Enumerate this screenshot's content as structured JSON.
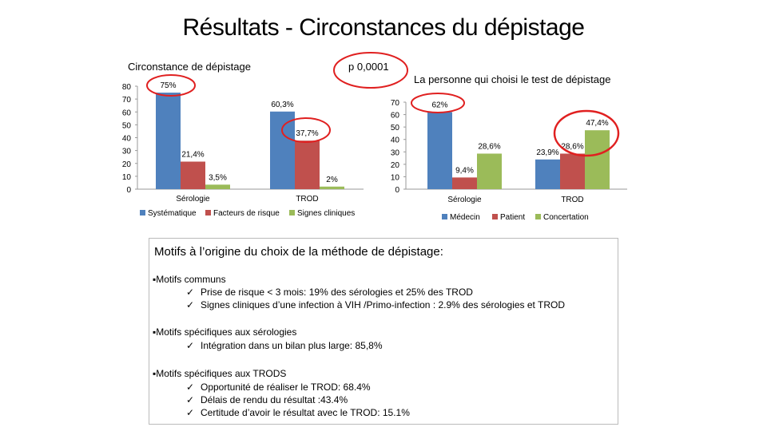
{
  "title": "Résultats - Circonstances du dépistage",
  "p_value": "p 0,0001",
  "colors": {
    "blue": "#4F81BD",
    "red": "#C0504D",
    "green": "#9BBB59",
    "highlight": "#E02020"
  },
  "chart_data": [
    {
      "type": "bar",
      "title": "Circonstance de dépistage",
      "categories": [
        "Sérologie",
        "TROD"
      ],
      "ylim": [
        0,
        80
      ],
      "yticks": [
        0,
        10,
        20,
        30,
        40,
        50,
        60,
        70,
        80
      ],
      "series": [
        {
          "name": "Systématique",
          "values": [
            75,
            60.3
          ],
          "labels": [
            "75%",
            "60,3%"
          ]
        },
        {
          "name": "Facteurs de risque",
          "values": [
            21.4,
            37.7
          ],
          "labels": [
            "21,4%",
            "37,7%"
          ]
        },
        {
          "name": "Signes cliniques",
          "values": [
            3.5,
            2
          ],
          "labels": [
            "3,5%",
            "2%"
          ]
        }
      ],
      "legend": "bottom"
    },
    {
      "type": "bar",
      "title": "La personne qui choisi le test de dépistage",
      "categories": [
        "Sérologie",
        "TROD"
      ],
      "ylim": [
        0,
        70
      ],
      "yticks": [
        0,
        10,
        20,
        30,
        40,
        50,
        60,
        70
      ],
      "series": [
        {
          "name": "Médecin",
          "values": [
            62,
            23.9
          ],
          "labels": [
            "62%",
            "23,9%"
          ]
        },
        {
          "name": "Patient",
          "values": [
            9.4,
            28.6
          ],
          "labels": [
            "9,4%",
            "28,6%"
          ]
        },
        {
          "name": "Concertation",
          "values": [
            28.6,
            47.4
          ],
          "labels": [
            "28,6%",
            "47,4%"
          ]
        }
      ],
      "legend": "bottom"
    }
  ],
  "motifs": {
    "title": "Motifs à l’origine du choix de la méthode de dépistage:",
    "check": "✓",
    "communs": {
      "label": "▪Motifs communs",
      "items": [
        "Prise de risque < 3 mois: 19% des sérologies et 25% des TROD",
        "Signes cliniques d’une infection à VIH /Primo-infection : 2.9% des sérologies et TROD"
      ]
    },
    "serologies": {
      "label": "▪Motifs spécifiques aux sérologies",
      "items": [
        "Intégration dans un bilan plus large: 85,8%"
      ]
    },
    "trods": {
      "label": "▪Motifs spécifiques aux TRODS",
      "items": [
        "Opportunité de réaliser le TROD: 68.4%",
        "Délais de rendu du résultat :43.4%",
        "Certitude d’avoir le résultat avec le TROD: 15.1%"
      ]
    }
  }
}
